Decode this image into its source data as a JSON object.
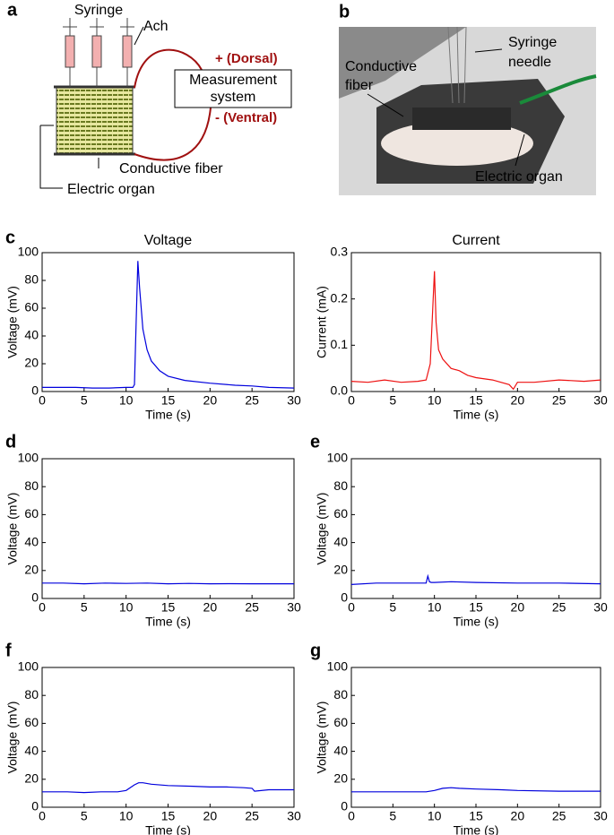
{
  "panel_labels": [
    "a",
    "b",
    "c",
    "d",
    "e",
    "f",
    "g"
  ],
  "diagram": {
    "syringe": "Syringe",
    "ach": "Ach",
    "box_label": [
      "Measurement",
      "system"
    ],
    "dorsal": "+ (Dorsal)",
    "ventral": "- (Ventral)",
    "fiber": "Conductive fiber",
    "organ": "Electric organ"
  },
  "photo": {
    "needle": [
      "Syringe",
      "needle"
    ],
    "fiber": [
      "Conductive",
      "fiber"
    ],
    "organ": "Electric organ"
  },
  "chart_data": [
    {
      "type": "line",
      "title": "Voltage",
      "x_label": "Time (s)",
      "y_label": "Voltage (mV)",
      "color": "#0000dd",
      "x": [
        0,
        2,
        4,
        6,
        8,
        10,
        10.8,
        11,
        11.2,
        11.4,
        11.6,
        12,
        12.5,
        13,
        14,
        15,
        17,
        20,
        23,
        25,
        27,
        30
      ],
      "values": [
        3,
        3,
        3,
        2.5,
        2.5,
        3,
        3,
        5,
        50,
        94,
        75,
        45,
        30,
        22,
        15,
        11,
        8,
        6,
        4.5,
        4,
        3,
        2.5
      ],
      "xlim": [
        0,
        30
      ],
      "xticks": [
        0,
        5,
        10,
        15,
        20,
        25,
        30
      ],
      "ylim": [
        0,
        100
      ],
      "yticks": [
        0,
        20,
        40,
        60,
        80,
        100
      ]
    },
    {
      "type": "line",
      "title": "Current",
      "x_label": "Time (s)",
      "y_label": "Current (mA)",
      "color": "#ee1111",
      "x": [
        0,
        2,
        4,
        6,
        8,
        9,
        9.5,
        9.8,
        10,
        10.2,
        10.5,
        11,
        12,
        13,
        14,
        15,
        17,
        19,
        19.5,
        20,
        22,
        25,
        28,
        30
      ],
      "values": [
        0.022,
        0.02,
        0.025,
        0.02,
        0.022,
        0.025,
        0.06,
        0.18,
        0.26,
        0.15,
        0.09,
        0.07,
        0.05,
        0.045,
        0.035,
        0.03,
        0.025,
        0.015,
        0.005,
        0.02,
        0.02,
        0.025,
        0.022,
        0.025
      ],
      "xlim": [
        0,
        30
      ],
      "xticks": [
        0,
        5,
        10,
        15,
        20,
        25,
        30
      ],
      "ylim": [
        0,
        0.3
      ],
      "yticks": [
        {
          "value": 0,
          "label": "0.0"
        },
        0.1,
        0.2,
        0.3
      ]
    },
    {
      "type": "line",
      "x_label": "Time (s)",
      "y_label": "Voltage (mV)",
      "color": "#0000dd",
      "x": [
        0,
        2.5,
        5,
        7.5,
        10,
        12.5,
        15,
        17.5,
        20,
        22.5,
        25,
        27.5,
        30
      ],
      "values": [
        11,
        11,
        10.5,
        11,
        10.8,
        11,
        10.5,
        10.8,
        10.5,
        10.6,
        10.5,
        10.5,
        10.5
      ],
      "xlim": [
        0,
        30
      ],
      "xticks": [
        0,
        5,
        10,
        15,
        20,
        25,
        30
      ],
      "ylim": [
        0,
        100
      ],
      "yticks": [
        0,
        20,
        40,
        60,
        80,
        100
      ]
    },
    {
      "type": "line",
      "x_label": "Time (s)",
      "y_label": "Voltage (mV)",
      "color": "#0000dd",
      "x": [
        0,
        3,
        6,
        9,
        9.2,
        9.4,
        9.6,
        10,
        12,
        15,
        20,
        25,
        30
      ],
      "values": [
        10,
        11,
        11,
        11,
        16,
        12,
        11.5,
        11.5,
        12,
        11.5,
        11,
        11,
        10.5
      ],
      "xlim": [
        0,
        30
      ],
      "xticks": [
        0,
        5,
        10,
        15,
        20,
        25,
        30
      ],
      "ylim": [
        0,
        100
      ],
      "yticks": [
        0,
        20,
        40,
        60,
        80,
        100
      ]
    },
    {
      "type": "line",
      "x_label": "Time (s)",
      "y_label": "Voltage (mV)",
      "color": "#0000dd",
      "x": [
        0,
        3,
        5,
        7,
        9,
        10,
        11,
        11.5,
        12,
        13,
        15,
        18,
        20,
        22,
        24,
        25,
        25.3,
        27,
        30
      ],
      "values": [
        11,
        11,
        10.5,
        11,
        11,
        12,
        16,
        17.5,
        17.5,
        16.5,
        15.5,
        15,
        14.5,
        14.5,
        14,
        13.5,
        11.5,
        12.5,
        12.5
      ],
      "xlim": [
        0,
        30
      ],
      "xticks": [
        0,
        5,
        10,
        15,
        20,
        25,
        30
      ],
      "ylim": [
        0,
        100
      ],
      "yticks": [
        0,
        20,
        40,
        60,
        80,
        100
      ]
    },
    {
      "type": "line",
      "x_label": "Time (s)",
      "y_label": "Voltage (mV)",
      "color": "#0000dd",
      "x": [
        0,
        3,
        6,
        9,
        10,
        11,
        12,
        13,
        15,
        18,
        20,
        25,
        30
      ],
      "values": [
        11,
        11,
        11,
        11,
        12,
        13.5,
        14,
        13.5,
        13,
        12.5,
        12,
        11.5,
        11.5
      ],
      "xlim": [
        0,
        30
      ],
      "xticks": [
        0,
        5,
        10,
        15,
        20,
        25,
        30
      ],
      "ylim": [
        0,
        100
      ],
      "yticks": [
        0,
        20,
        40,
        60,
        80,
        100
      ]
    }
  ]
}
